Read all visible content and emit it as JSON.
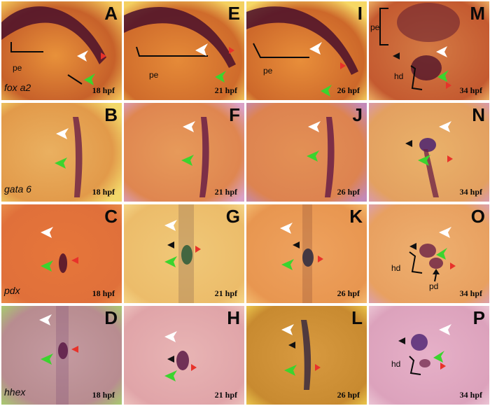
{
  "rows": [
    {
      "gene": "fox a2",
      "panels": [
        {
          "letter": "A",
          "stage": "18 hpf",
          "labels": [
            "pe"
          ]
        },
        {
          "letter": "E",
          "stage": "21 hpf",
          "labels": [
            "pe"
          ]
        },
        {
          "letter": "I",
          "stage": "26 hpf",
          "labels": [
            "pe"
          ]
        },
        {
          "letter": "M",
          "stage": "34 hpf",
          "labels": [
            "pe",
            "hd"
          ]
        }
      ]
    },
    {
      "gene": "gata 6",
      "panels": [
        {
          "letter": "B",
          "stage": "18 hpf",
          "labels": []
        },
        {
          "letter": "F",
          "stage": "21 hpf",
          "labels": []
        },
        {
          "letter": "J",
          "stage": "26 hpf",
          "labels": []
        },
        {
          "letter": "N",
          "stage": "34 hpf",
          "labels": []
        }
      ]
    },
    {
      "gene": "pdx",
      "panels": [
        {
          "letter": "C",
          "stage": "18 hpf",
          "labels": []
        },
        {
          "letter": "G",
          "stage": "21 hpf",
          "labels": []
        },
        {
          "letter": "K",
          "stage": "26 hpf",
          "labels": []
        },
        {
          "letter": "O",
          "stage": "34 hpf",
          "labels": [
            "hd",
            "pd"
          ]
        }
      ]
    },
    {
      "gene": "hhex",
      "panels": [
        {
          "letter": "D",
          "stage": "18 hpf",
          "labels": []
        },
        {
          "letter": "H",
          "stage": "21 hpf",
          "labels": []
        },
        {
          "letter": "L",
          "stage": "26 hpf",
          "labels": []
        },
        {
          "letter": "P",
          "stage": "34 hpf",
          "labels": [
            "hd"
          ]
        }
      ]
    }
  ],
  "colors": {
    "arrow_white": "#ffffff",
    "arrow_green": "#3bd42e",
    "arrowhead_red": "#e8322a",
    "arrowhead_black": "#111111",
    "stain": "#4a0f2a"
  }
}
